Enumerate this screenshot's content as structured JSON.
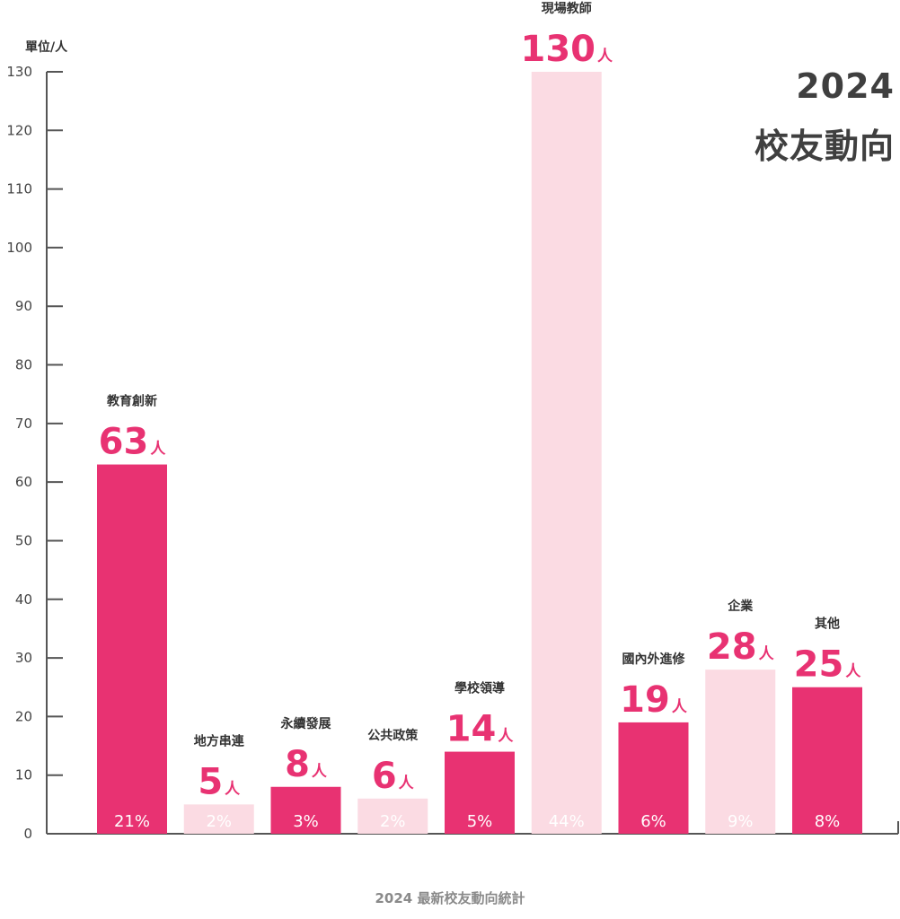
{
  "chart_data": {
    "type": "bar",
    "title": [
      "2024",
      "校友動向"
    ],
    "ylabel": "單位/人",
    "caption": "2024 最新校友動向統計",
    "unit": "人",
    "ylim": [
      0,
      130
    ],
    "yticks": [
      0,
      10,
      20,
      30,
      40,
      50,
      60,
      70,
      80,
      90,
      100,
      110,
      120,
      130
    ],
    "colors": {
      "dark": "#e83272",
      "light": "#fbdbe3",
      "axis": "#555555"
    },
    "categories": [
      "教育創新",
      "地方串連",
      "永續發展",
      "公共政策",
      "學校領導",
      "現場教師",
      "國內外進修",
      "企業",
      "其他"
    ],
    "values": [
      63,
      5,
      8,
      6,
      14,
      130,
      19,
      28,
      25
    ],
    "percentages": [
      "21%",
      "2%",
      "3%",
      "2%",
      "5%",
      "44%",
      "6%",
      "9%",
      "8%"
    ],
    "bar_shades": [
      "dark",
      "light",
      "dark",
      "light",
      "dark",
      "light",
      "dark",
      "light",
      "dark"
    ]
  }
}
